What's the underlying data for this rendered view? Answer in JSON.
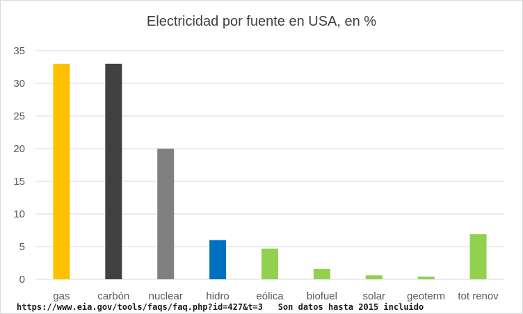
{
  "chart_data": {
    "type": "bar",
    "title": "Electricidad por fuente en USA, en %",
    "xlabel": "",
    "ylabel": "",
    "ylim": [
      0,
      35
    ],
    "yticks": [
      0,
      5,
      10,
      15,
      20,
      25,
      30,
      35
    ],
    "grid": true,
    "legend": "none",
    "categories": [
      "gas",
      "carbón",
      "nuclear",
      "hidro",
      "eólica",
      "biofuel",
      "solar",
      "geoterm",
      "tot renov"
    ],
    "values": [
      33,
      33,
      20,
      6,
      4.7,
      1.6,
      0.6,
      0.4,
      6.9
    ],
    "colors": [
      "#FFC000",
      "#404040",
      "#808080",
      "#0070C0",
      "#92D050",
      "#92D050",
      "#92D050",
      "#92D050",
      "#92D050"
    ]
  },
  "footer": {
    "source_url": "https://www.eia.gov/tools/faqs/faq.php?id=427&t=3",
    "note": "Son datos hasta 2015 incluido"
  }
}
